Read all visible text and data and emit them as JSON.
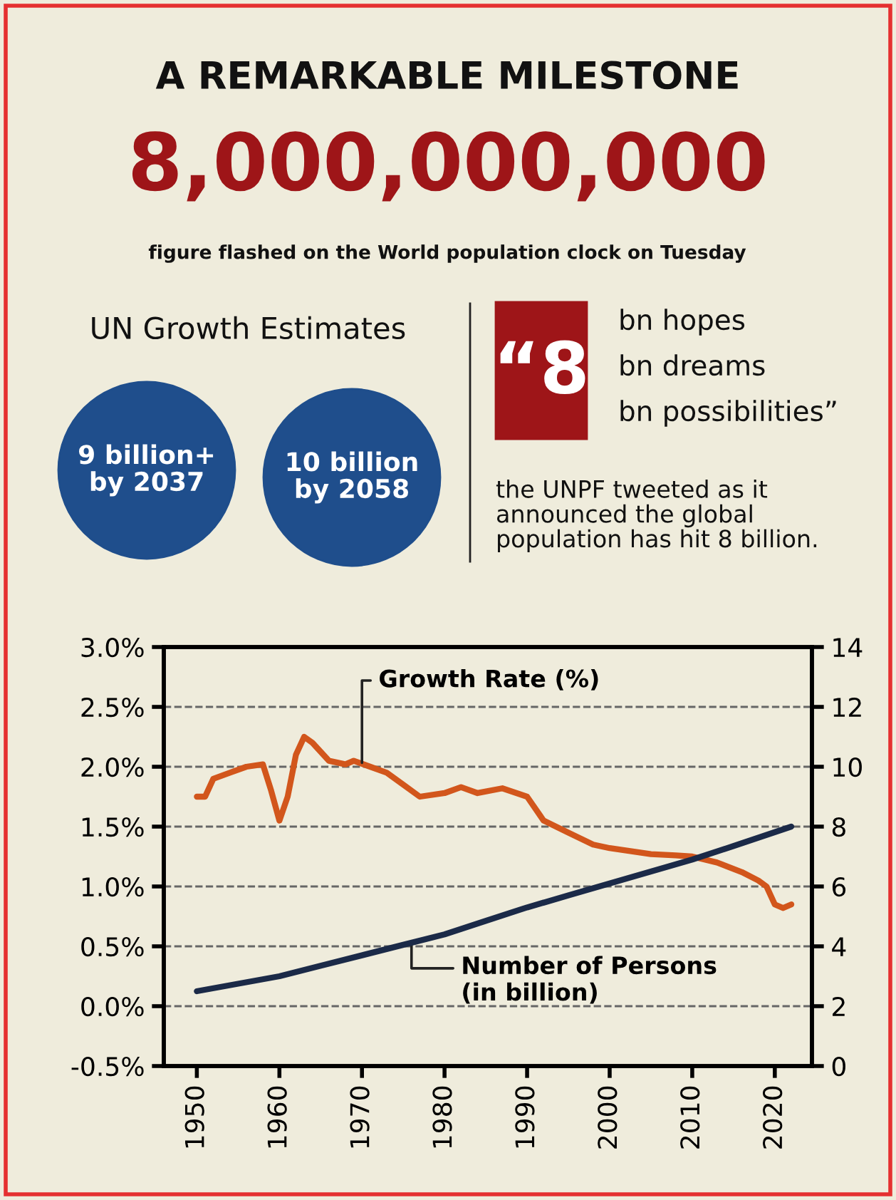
{
  "chart_data": {
    "type": "line",
    "title": "A REMARKABLE MILESTONE",
    "subtitle": "8,000,000,000",
    "annotations": [
      "figure flashed on the World population clock on Tuesday",
      "UN Growth Estimates",
      "9 billion+\nby 2037",
      "10 billion\nby 2058",
      "“8",
      "bn hopes",
      "bn dreams",
      "bn possibilities”",
      "the UNPF tweeted as it\nannounced the global\npopulation has hit 8 billion.",
      {
        "text": "Growth Rate (%)",
        "x": 1970,
        "y": 2.0
      },
      {
        "text": "Number of Persons\n(in billion)",
        "x": 1976,
        "y": 0.55
      }
    ],
    "series": [
      {
        "name": null,
        "color": "#d2561c",
        "axis": "y",
        "x": [
          1950,
          1951,
          1952,
          1954,
          1956,
          1958,
          1959,
          1960,
          1961,
          1962,
          1963,
          1964,
          1966,
          1968,
          1969,
          1971,
          1973,
          1975,
          1977,
          1980,
          1982,
          1984,
          1987,
          1990,
          1992,
          1995,
          1998,
          2000,
          2005,
          2008,
          2010,
          2013,
          2016,
          2018,
          2019,
          2020,
          2021,
          2022
        ],
        "values": [
          1.75,
          1.75,
          1.9,
          1.95,
          2.0,
          2.02,
          1.8,
          1.55,
          1.75,
          2.1,
          2.25,
          2.2,
          2.05,
          2.02,
          2.05,
          2.0,
          1.95,
          1.85,
          1.75,
          1.78,
          1.83,
          1.78,
          1.82,
          1.75,
          1.55,
          1.45,
          1.35,
          1.32,
          1.27,
          1.26,
          1.25,
          1.2,
          1.12,
          1.05,
          1.0,
          0.85,
          0.82,
          0.85
        ]
      },
      {
        "name": null,
        "color": "#1b2a48",
        "axis": "y2",
        "x": [
          1950,
          1955,
          1960,
          1965,
          1970,
          1975,
          1980,
          1985,
          1990,
          1995,
          2000,
          2005,
          2010,
          2015,
          2022
        ],
        "values": [
          2.5,
          2.75,
          3.0,
          3.35,
          3.7,
          4.05,
          4.4,
          4.85,
          5.3,
          5.7,
          6.1,
          6.5,
          6.9,
          7.35,
          8.0
        ]
      }
    ],
    "xlim": [
      1946,
      2024.5
    ],
    "xticks": [
      1950,
      1960,
      1970,
      1980,
      1990,
      2000,
      2010,
      2020
    ],
    "ylim": [
      -0.5,
      3.0
    ],
    "yticks": [
      {
        "value": -0.5,
        "label": "-0.5%"
      },
      {
        "value": 0.0,
        "label": "0.0%"
      },
      {
        "value": 0.5,
        "label": "0.5%"
      },
      {
        "value": 1.0,
        "label": "1.0%"
      },
      {
        "value": 1.5,
        "label": "1.5%"
      },
      {
        "value": 2.0,
        "label": "2.0%"
      },
      {
        "value": 2.5,
        "label": "2.5%"
      },
      {
        "value": 3.0,
        "label": "3.0%"
      }
    ],
    "y2lim": [
      0,
      14
    ],
    "y2ticks": [
      0,
      2,
      4,
      6,
      8,
      10,
      12,
      14
    ],
    "grid": "y",
    "marker": "none",
    "line_style": "solid"
  }
}
